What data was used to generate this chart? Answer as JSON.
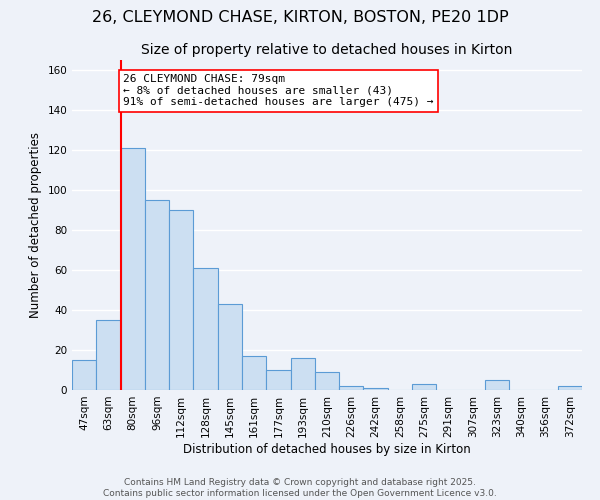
{
  "title": "26, CLEYMOND CHASE, KIRTON, BOSTON, PE20 1DP",
  "subtitle": "Size of property relative to detached houses in Kirton",
  "xlabel": "Distribution of detached houses by size in Kirton",
  "ylabel": "Number of detached properties",
  "categories": [
    "47sqm",
    "63sqm",
    "80sqm",
    "96sqm",
    "112sqm",
    "128sqm",
    "145sqm",
    "161sqm",
    "177sqm",
    "193sqm",
    "210sqm",
    "226sqm",
    "242sqm",
    "258sqm",
    "275sqm",
    "291sqm",
    "307sqm",
    "323sqm",
    "340sqm",
    "356sqm",
    "372sqm"
  ],
  "values": [
    15,
    35,
    121,
    95,
    90,
    61,
    43,
    17,
    10,
    16,
    9,
    2,
    1,
    0,
    3,
    0,
    0,
    5,
    0,
    0,
    2
  ],
  "bar_color": "#ccdff2",
  "bar_edge_color": "#5b9bd5",
  "reference_line_x": 2,
  "reference_line_label": "26 CLEYMOND CHASE: 79sqm",
  "annotation_line1": "← 8% of detached houses are smaller (43)",
  "annotation_line2": "91% of semi-detached houses are larger (475) →",
  "box_edge_color": "red",
  "ylim": [
    0,
    165
  ],
  "yticks": [
    0,
    20,
    40,
    60,
    80,
    100,
    120,
    140,
    160
  ],
  "background_color": "#eef2f9",
  "grid_color": "#ffffff",
  "footer_line1": "Contains HM Land Registry data © Crown copyright and database right 2025.",
  "footer_line2": "Contains public sector information licensed under the Open Government Licence v3.0.",
  "title_fontsize": 11.5,
  "subtitle_fontsize": 10,
  "axis_label_fontsize": 8.5,
  "tick_fontsize": 7.5,
  "annotation_fontsize": 8,
  "footer_fontsize": 6.5
}
